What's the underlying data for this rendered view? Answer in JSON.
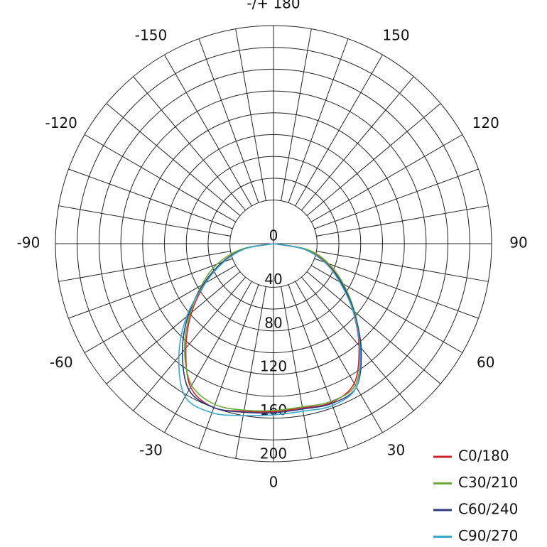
{
  "chart_data": {
    "type": "polar",
    "rlim": [
      0,
      200
    ],
    "rticks": [
      0,
      40,
      80,
      120,
      160,
      200
    ],
    "rgrid": [
      40,
      60,
      80,
      100,
      120,
      140,
      160,
      180,
      200
    ],
    "angle_grid": [
      0,
      10,
      20,
      30,
      40,
      50,
      60,
      70,
      80,
      90,
      100,
      110,
      120,
      130,
      140,
      150,
      160,
      170,
      180,
      190,
      200,
      210,
      220,
      230,
      240,
      250,
      260,
      270,
      280,
      290,
      300,
      310,
      320,
      330,
      340,
      350
    ],
    "angle_ticks": [
      0,
      30,
      60,
      90,
      120,
      150,
      {
        "value": 180,
        "label": "-/+ 180"
      },
      -150,
      -120,
      -90,
      -60,
      -30
    ],
    "x": [
      -90,
      -80,
      -70,
      -60,
      -50,
      -40,
      -30,
      -20,
      -10,
      0,
      10,
      20,
      30,
      40,
      50,
      60,
      70,
      80,
      90
    ],
    "series": [
      {
        "name": "C0/180",
        "color": "#d2232a",
        "values": [
          0,
          28,
          50,
          72,
          98,
          125,
          152,
          160,
          156,
          154,
          153,
          155,
          148,
          122,
          95,
          72,
          52,
          30,
          0
        ]
      },
      {
        "name": "C30/210",
        "color": "#6aaa3a",
        "values": [
          0,
          30,
          55,
          76,
          100,
          127,
          150,
          157,
          155,
          153,
          152,
          154,
          150,
          124,
          97,
          74,
          54,
          32,
          0
        ]
      },
      {
        "name": "C60/240",
        "color": "#2b3a80",
        "values": [
          0,
          27,
          50,
          74,
          102,
          130,
          155,
          160,
          157,
          155,
          154,
          156,
          152,
          125,
          96,
          72,
          50,
          28,
          0
        ]
      },
      {
        "name": "C90/270",
        "color": "#3ba7c9",
        "values": [
          0,
          26,
          48,
          72,
          104,
          135,
          162,
          165,
          160,
          157,
          156,
          158,
          152,
          123,
          95,
          70,
          50,
          28,
          0
        ]
      }
    ]
  }
}
